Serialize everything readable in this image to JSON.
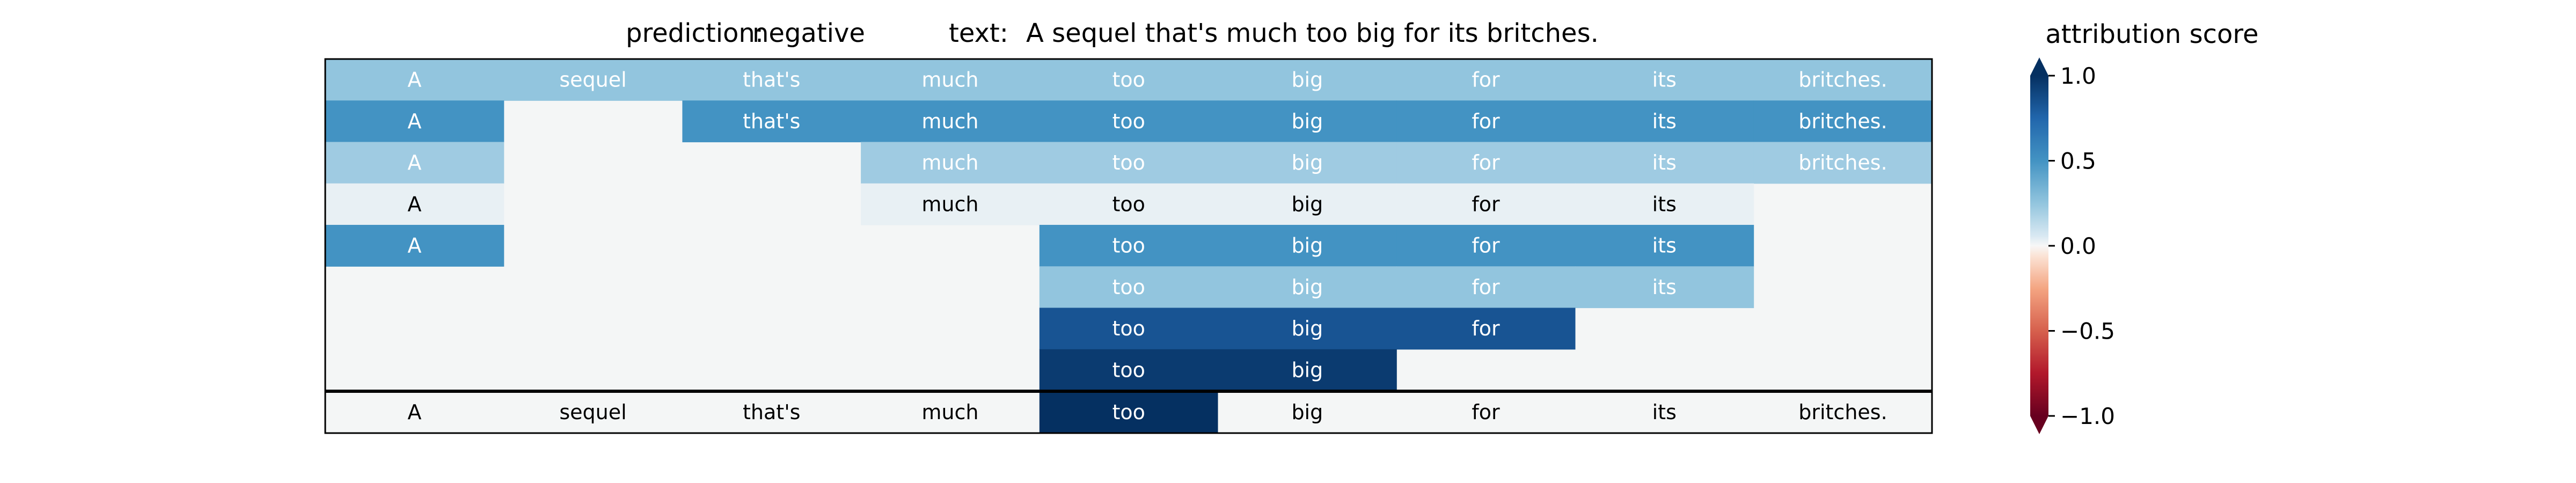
{
  "header": {
    "prediction_label": "prediction:",
    "prediction_value": "negative",
    "text_label": "text:",
    "text_value": "A sequel that's much too big for its britches."
  },
  "chart_data": {
    "type": "heatmap",
    "tokens": [
      "A",
      "sequel",
      "that's",
      "much",
      "too",
      "big",
      "for",
      "its",
      "britches."
    ],
    "rows": [
      [
        0.5,
        0.5,
        0.5,
        0.5,
        0.5,
        0.5,
        0.5,
        0.5,
        0.5
      ],
      [
        0.7,
        null,
        0.7,
        0.7,
        0.7,
        0.7,
        0.7,
        0.7,
        0.7
      ],
      [
        0.45,
        null,
        null,
        0.45,
        0.45,
        0.45,
        0.45,
        0.45,
        0.45
      ],
      [
        0.1,
        null,
        null,
        0.1,
        0.1,
        0.1,
        0.1,
        0.1,
        null
      ],
      [
        0.7,
        null,
        null,
        null,
        0.7,
        0.7,
        0.7,
        0.7,
        null
      ],
      [
        null,
        null,
        null,
        null,
        0.5,
        0.5,
        0.5,
        0.5,
        null
      ],
      [
        null,
        null,
        null,
        null,
        0.9,
        0.9,
        0.9,
        null,
        null
      ],
      [
        null,
        null,
        null,
        null,
        0.97,
        0.97,
        null,
        null,
        null
      ]
    ],
    "token_scores": [
      null,
      null,
      null,
      null,
      1.0,
      null,
      null,
      null,
      null
    ],
    "colorbar": {
      "title": "attribution score",
      "ticks": [
        1.0,
        0.5,
        0.0,
        -0.5,
        -1.0
      ],
      "tick_labels": [
        "1.0",
        "0.5",
        "0.0",
        "−0.5",
        "−1.0"
      ],
      "range": [
        -1.0,
        1.0
      ],
      "colormap": "RdBu",
      "extend": "both"
    },
    "empty_cell_color": "#f4f6f6",
    "light_text_color": "#ffffff",
    "dark_text_color": "#000000"
  }
}
